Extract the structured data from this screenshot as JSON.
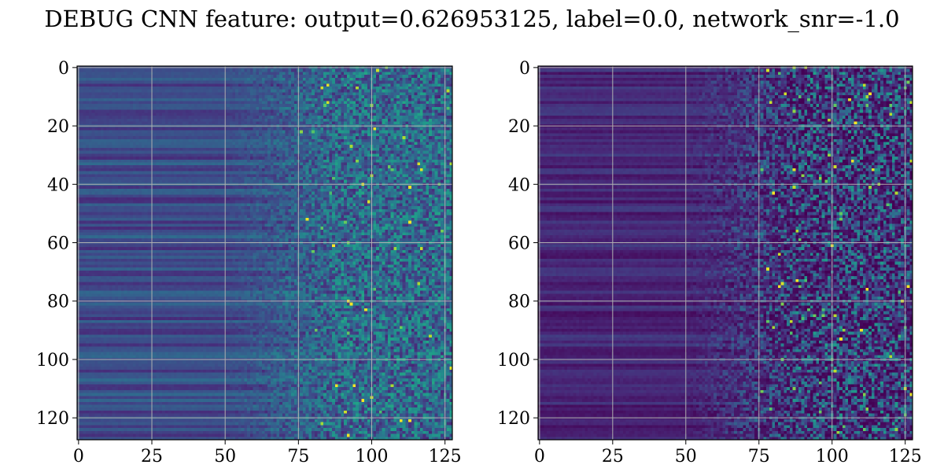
{
  "title": "DEBUG CNN feature: output=0.626953125, label=0.0, network_snr=-1.0",
  "chart_data": [
    {
      "type": "heatmap",
      "panel": "left",
      "rows": 128,
      "cols": 128,
      "colormap": "viridis",
      "xlim": [
        0,
        127
      ],
      "ylim": [
        127,
        0
      ],
      "xticks": [
        0,
        25,
        50,
        75,
        100,
        125
      ],
      "yticks": [
        0,
        20,
        40,
        60,
        80,
        100,
        120
      ],
      "grid": true,
      "description_of_values": {
        "cols_0_50": "low, row-banded, smooth",
        "cols_50_75": "rising noise",
        "cols_75_127": "noisy, higher values with bright spots"
      },
      "bright_spots": [
        [
          87,
          61
        ],
        [
          110,
          121
        ],
        [
          113,
          121
        ]
      ]
    },
    {
      "type": "heatmap",
      "panel": "right",
      "rows": 128,
      "cols": 128,
      "colormap": "viridis",
      "xlim": [
        0,
        127
      ],
      "ylim": [
        127,
        0
      ],
      "xticks": [
        0,
        25,
        50,
        75,
        100,
        125
      ],
      "yticks": [
        0,
        20,
        40,
        60,
        80,
        100,
        120
      ],
      "grid": true,
      "description_of_values": {
        "cols_0_50": "very low, dark purple row bands",
        "cols_50_75": "low with growing noise",
        "cols_75_127": "sparse, noisy, occasional bright yellow spots"
      },
      "bright_spots": [
        [
          108,
          19
        ],
        [
          103,
          93
        ],
        [
          112,
          76
        ],
        [
          100,
          61
        ],
        [
          80,
          43
        ],
        [
          113,
          9
        ]
      ]
    }
  ]
}
